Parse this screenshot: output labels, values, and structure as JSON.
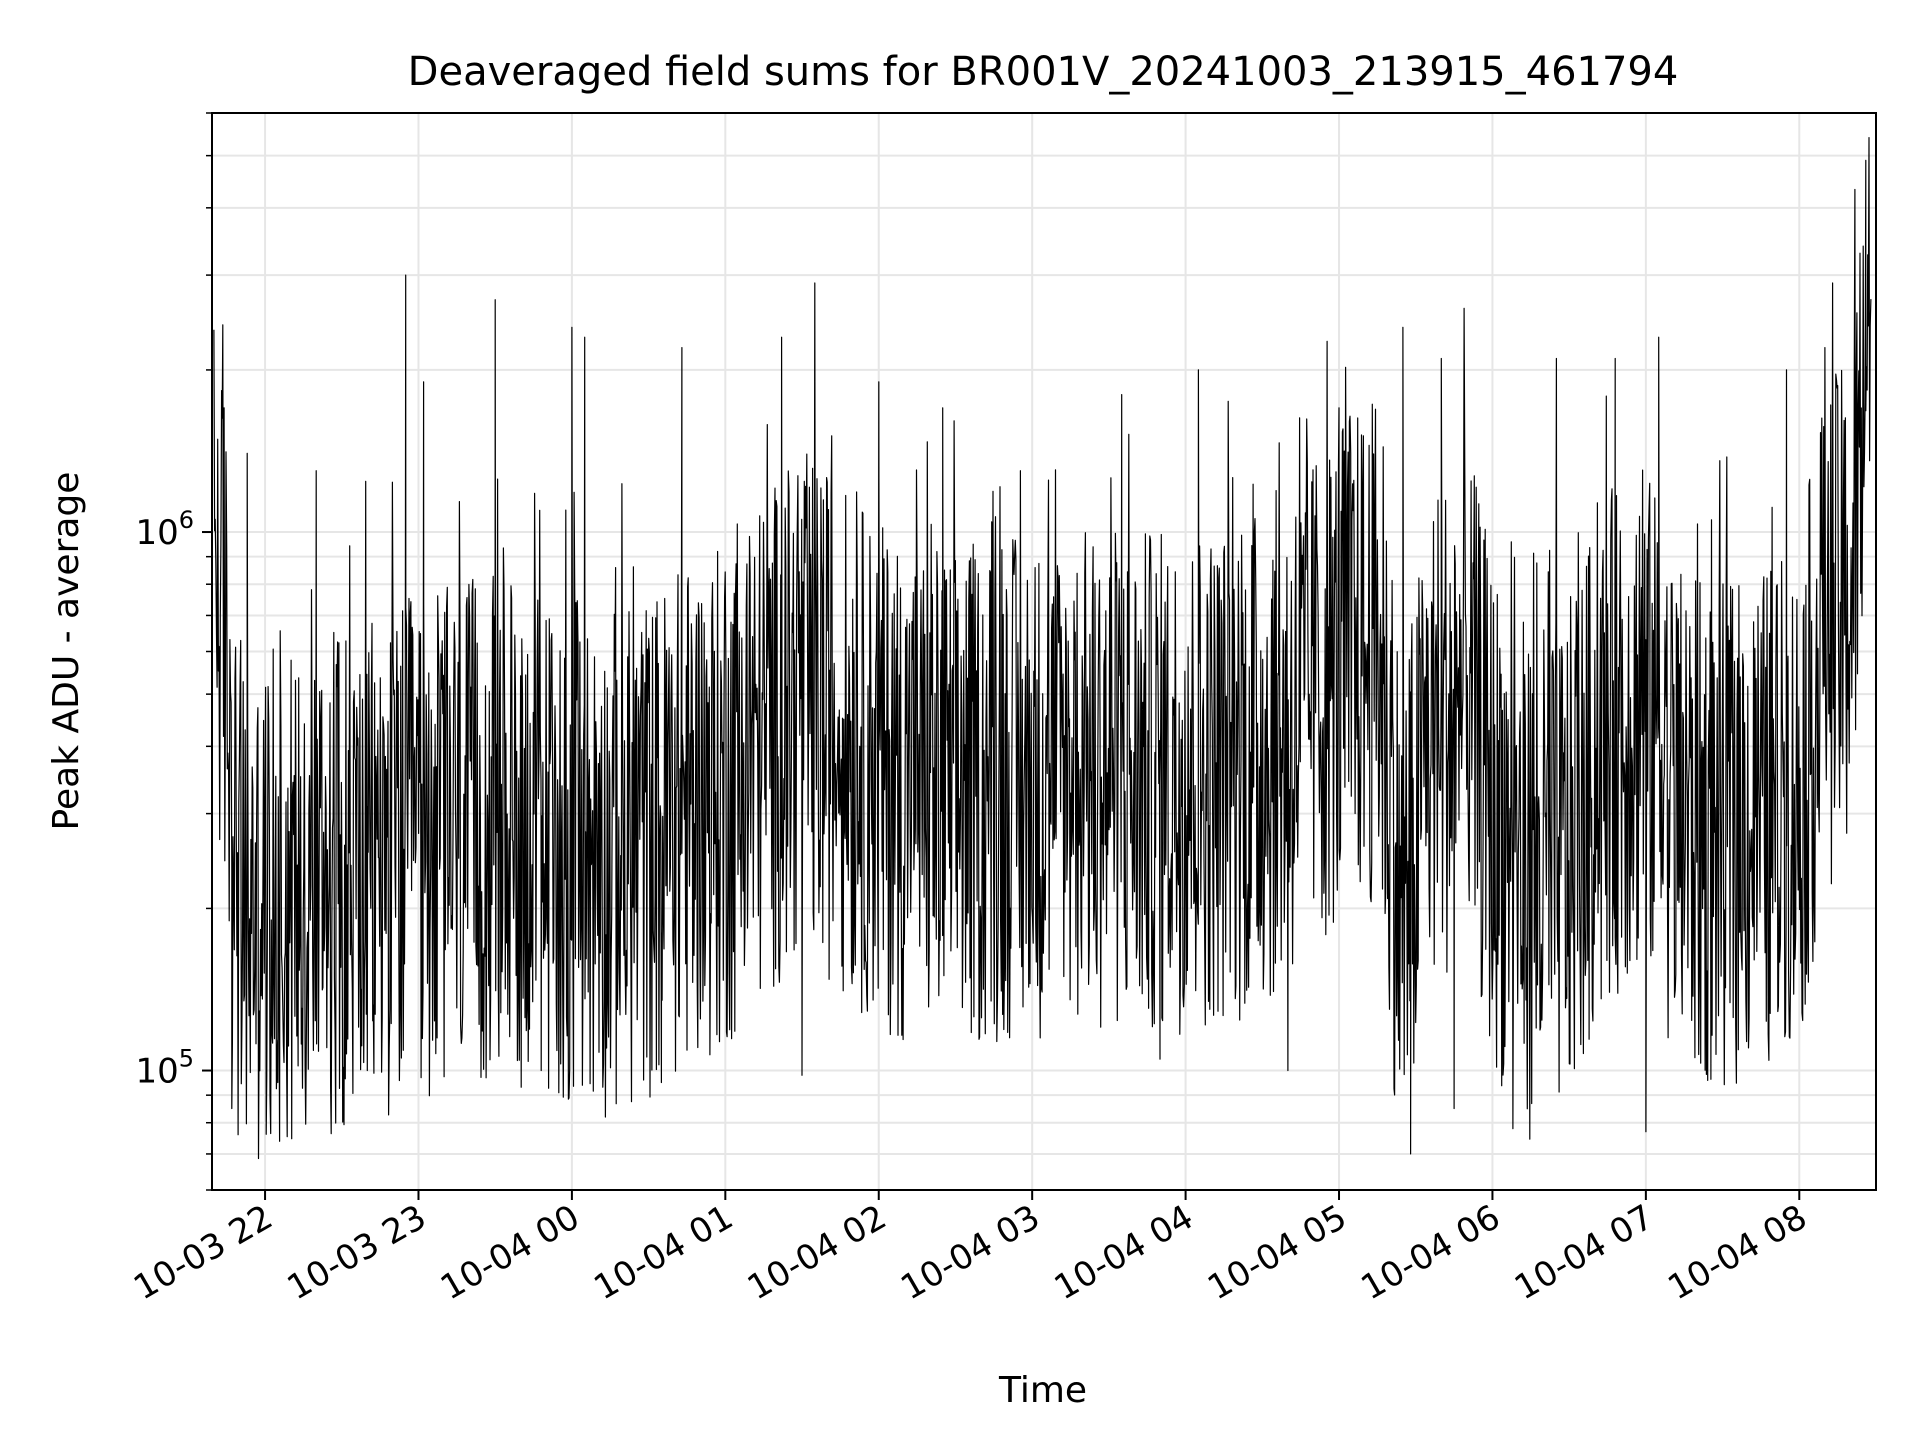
{
  "chart_data": {
    "type": "line",
    "title": "Deaveraged field sums for BR001V_20241003_213915_461794",
    "xlabel": "Time",
    "ylabel": "Peak ADU - average",
    "x_range": [
      "2024-10-03T21:39:15",
      "2024-10-04T08:30:00"
    ],
    "x_ticks": [
      {
        "value": "2024-10-03T22:00",
        "label": "10-03 22"
      },
      {
        "value": "2024-10-03T23:00",
        "label": "10-03 23"
      },
      {
        "value": "2024-10-04T00:00",
        "label": "10-04 00"
      },
      {
        "value": "2024-10-04T01:00",
        "label": "10-04 01"
      },
      {
        "value": "2024-10-04T02:00",
        "label": "10-04 02"
      },
      {
        "value": "2024-10-04T03:00",
        "label": "10-04 03"
      },
      {
        "value": "2024-10-04T04:00",
        "label": "10-04 04"
      },
      {
        "value": "2024-10-04T05:00",
        "label": "10-04 05"
      },
      {
        "value": "2024-10-04T06:00",
        "label": "10-04 06"
      },
      {
        "value": "2024-10-04T07:00",
        "label": "10-04 07"
      },
      {
        "value": "2024-10-04T08:00",
        "label": "10-04 08"
      }
    ],
    "y_scale": "log",
    "y_range": [
      60000,
      6000000
    ],
    "y_ticks": [
      {
        "value": 100000,
        "base": "10",
        "exp": "5"
      },
      {
        "value": 1000000,
        "base": "10",
        "exp": "6"
      }
    ],
    "grid": true,
    "series": [
      {
        "color": "#000000",
        "points": [
          [
            "2024-10-03T21:40:00",
            900000
          ],
          [
            "2024-10-03T21:45:00",
            550000
          ],
          [
            "2024-10-03T21:50:00",
            180000
          ],
          [
            "2024-10-03T22:00:00",
            200000
          ],
          [
            "2024-10-03T22:15:00",
            220000
          ],
          [
            "2024-10-03T22:30:00",
            230000
          ],
          [
            "2024-10-03T22:45:00",
            240000
          ],
          [
            "2024-10-03T23:00:00",
            260000
          ],
          [
            "2024-10-03T23:15:00",
            270000
          ],
          [
            "2024-10-03T23:30:00",
            280000
          ],
          [
            "2024-10-03T23:45:00",
            270000
          ],
          [
            "2024-10-04T00:00:00",
            250000
          ],
          [
            "2024-10-04T00:15:00",
            240000
          ],
          [
            "2024-10-04T00:30:00",
            260000
          ],
          [
            "2024-10-04T00:45:00",
            300000
          ],
          [
            "2024-10-04T01:00:00",
            320000
          ],
          [
            "2024-10-04T01:15:00",
            400000
          ],
          [
            "2024-10-04T01:30:00",
            480000
          ],
          [
            "2024-10-04T01:45:00",
            420000
          ],
          [
            "2024-10-04T02:00:00",
            350000
          ],
          [
            "2024-10-04T02:15:00",
            330000
          ],
          [
            "2024-10-04T02:30:00",
            320000
          ],
          [
            "2024-10-04T02:45:00",
            330000
          ],
          [
            "2024-10-04T03:00:00",
            330000
          ],
          [
            "2024-10-04T03:15:00",
            340000
          ],
          [
            "2024-10-04T03:30:00",
            350000
          ],
          [
            "2024-10-04T03:45:00",
            340000
          ],
          [
            "2024-10-04T04:00:00",
            350000
          ],
          [
            "2024-10-04T04:15:00",
            360000
          ],
          [
            "2024-10-04T04:30:00",
            380000
          ],
          [
            "2024-10-04T04:45:00",
            450000
          ],
          [
            "2024-10-04T05:00:00",
            550000
          ],
          [
            "2024-10-04T05:15:00",
            600000
          ],
          [
            "2024-10-04T05:25:00",
            180000
          ],
          [
            "2024-10-04T05:35:00",
            400000
          ],
          [
            "2024-10-04T05:50:00",
            500000
          ],
          [
            "2024-10-04T06:00:00",
            300000
          ],
          [
            "2024-10-04T06:15:00",
            220000
          ],
          [
            "2024-10-04T06:30:00",
            250000
          ],
          [
            "2024-10-04T06:45:00",
            400000
          ],
          [
            "2024-10-04T07:00:00",
            450000
          ],
          [
            "2024-10-04T07:15:00",
            280000
          ],
          [
            "2024-10-04T07:30:00",
            270000
          ],
          [
            "2024-10-04T07:45:00",
            290000
          ],
          [
            "2024-10-04T08:00:00",
            320000
          ],
          [
            "2024-10-04T08:10:00",
            650000
          ],
          [
            "2024-10-04T08:20:00",
            700000
          ],
          [
            "2024-10-04T08:28:00",
            3000000
          ]
        ],
        "spikes": [
          [
            "2024-10-03T21:44:00",
            1700000
          ],
          [
            "2024-10-03T21:47:00",
            85000
          ],
          [
            "2024-10-03T21:53:00",
            1400000
          ],
          [
            "2024-10-03T22:05:00",
            95000
          ],
          [
            "2024-10-03T22:20:00",
            1300000
          ],
          [
            "2024-10-03T22:40:00",
            100000
          ],
          [
            "2024-10-03T22:55:00",
            3000000
          ],
          [
            "2024-10-03T23:02:00",
            1900000
          ],
          [
            "2024-10-03T23:30:00",
            2700000
          ],
          [
            "2024-10-03T23:48:00",
            100000
          ],
          [
            "2024-10-04T00:00:00",
            2400000
          ],
          [
            "2024-10-04T00:05:00",
            2300000
          ],
          [
            "2024-10-04T00:35:00",
            95000
          ],
          [
            "2024-10-04T00:43:00",
            2200000
          ],
          [
            "2024-10-04T01:22:00",
            2300000
          ],
          [
            "2024-10-04T01:30:00",
            98000
          ],
          [
            "2024-10-04T01:35:00",
            2900000
          ],
          [
            "2024-10-04T02:00:00",
            1900000
          ],
          [
            "2024-10-04T02:25:00",
            1700000
          ],
          [
            "2024-10-04T03:35:00",
            1800000
          ],
          [
            "2024-10-04T03:50:00",
            105000
          ],
          [
            "2024-10-04T04:05:00",
            2000000
          ],
          [
            "2024-10-04T04:40:00",
            100000
          ],
          [
            "2024-10-04T05:00:00",
            1700000
          ],
          [
            "2024-10-04T05:25:00",
            2400000
          ],
          [
            "2024-10-04T05:28:00",
            70000
          ],
          [
            "2024-10-04T05:40:00",
            2100000
          ],
          [
            "2024-10-04T05:45:00",
            85000
          ],
          [
            "2024-10-04T06:08:00",
            78000
          ],
          [
            "2024-10-04T06:25:00",
            2100000
          ],
          [
            "2024-10-04T06:48:00",
            2100000
          ],
          [
            "2024-10-04T07:00:00",
            77000
          ],
          [
            "2024-10-04T07:05:00",
            2300000
          ],
          [
            "2024-10-04T07:55:00",
            2000000
          ],
          [
            "2024-10-04T08:10:00",
            2200000
          ],
          [
            "2024-10-04T08:26:00",
            4900000
          ],
          [
            "2024-10-04T08:29:00",
            3500000
          ]
        ]
      }
    ]
  }
}
